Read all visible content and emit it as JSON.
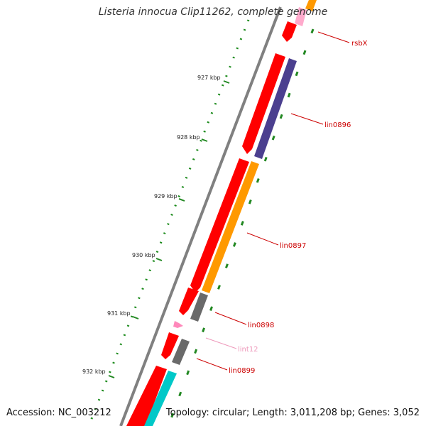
{
  "title": "Listeria innocua Clip11262, complete genome",
  "footer": {
    "accession": "Accession: NC_003212",
    "summary": "Topology: circular; Length: 3,011,208 bp; Genes: 3,052"
  },
  "ticks": [
    "927 kbp",
    "928 kbp",
    "929 kbp",
    "930 kbp",
    "931 kbp",
    "932 kbp"
  ],
  "gene_labels": [
    {
      "id": "rsbx",
      "text": "rsbX",
      "color": "#cc0000"
    },
    {
      "id": "lin0896",
      "text": "lin0896",
      "color": "#cc0000"
    },
    {
      "id": "lin0897",
      "text": "lin0897",
      "color": "#cc0000"
    },
    {
      "id": "lin0898",
      "text": "lin0898",
      "color": "#cc0000"
    },
    {
      "id": "lint12",
      "text": "lint12",
      "color": "#ee99bb"
    },
    {
      "id": "lin0899",
      "text": "lin0899",
      "color": "#cc0000"
    }
  ],
  "colors": {
    "backbone": "#808080",
    "gene_forward": "#ff0000",
    "cog_purple": "#4b3f8f",
    "cog_orange": "#ff9900",
    "cog_gray": "#6a6a6a",
    "cog_cyan": "#00c8c8",
    "cog_pink": "#ffaacc",
    "tick_green": "#228822"
  }
}
